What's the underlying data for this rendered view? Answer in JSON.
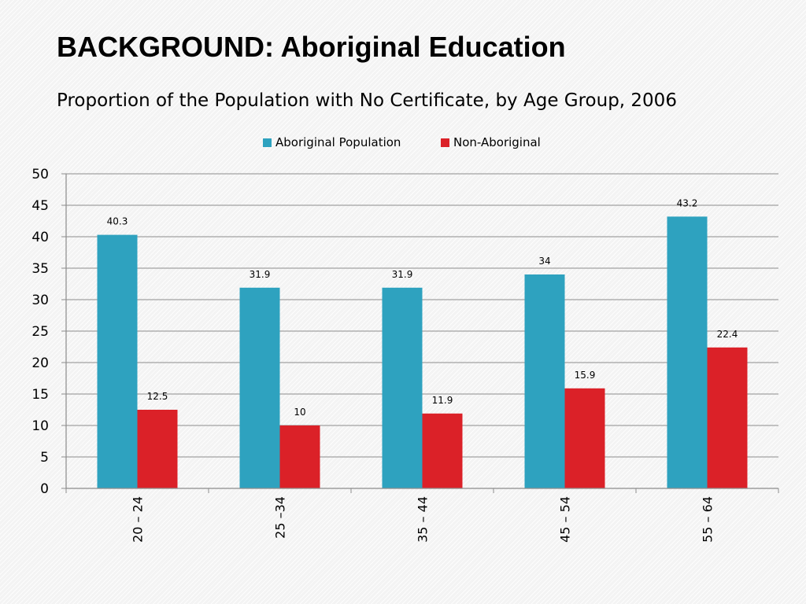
{
  "slide": {
    "title": "BACKGROUND: Aboriginal Education"
  },
  "chart_data": {
    "type": "bar",
    "title": "Proportion of the Population with No Certificate, by Age Group, 2006",
    "xlabel": "",
    "ylabel": "",
    "categories": [
      "20 – 24",
      "25 –34",
      "35 – 44",
      "45 – 54",
      "55 – 64"
    ],
    "series": [
      {
        "name": "Aboriginal Population",
        "color": "#2ea2bf",
        "values": [
          40.3,
          31.9,
          31.9,
          34,
          43.2
        ],
        "labels": [
          "40.3",
          "31.9",
          "31.9",
          "34",
          "43.2"
        ]
      },
      {
        "name": "Non-Aboriginal",
        "color": "#db2128",
        "values": [
          12.5,
          10,
          11.9,
          15.9,
          22.4
        ],
        "labels": [
          "12.5",
          "10",
          "11.9",
          "15.9",
          "22.4"
        ]
      }
    ],
    "ylim": [
      0,
      50
    ],
    "yticks": [
      "0",
      "5",
      "10",
      "15",
      "20",
      "25",
      "30",
      "35",
      "40",
      "45",
      "50"
    ],
    "grid": true,
    "legend_position": "top"
  }
}
